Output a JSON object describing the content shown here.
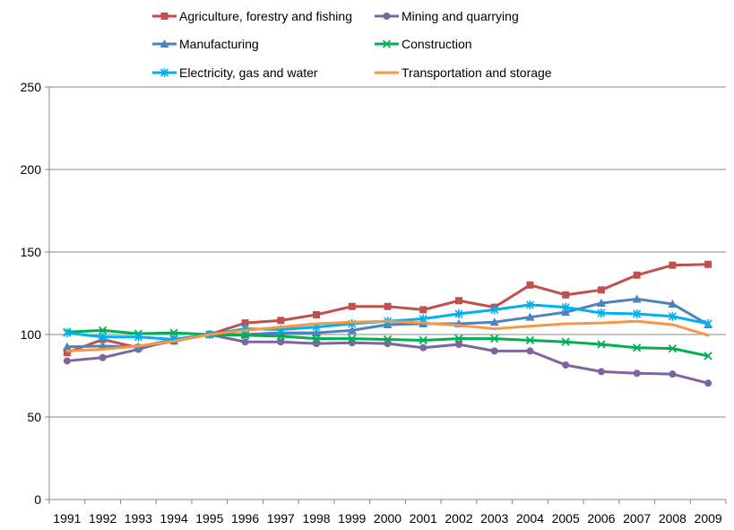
{
  "chart_data": {
    "type": "line",
    "title": "",
    "xlabel": "",
    "ylabel": "",
    "categories": [
      "1991",
      "1992",
      "1993",
      "1994",
      "1995",
      "1996",
      "1997",
      "1998",
      "1999",
      "2000",
      "2001",
      "2002",
      "2003",
      "2004",
      "2005",
      "2006",
      "2007",
      "2008",
      "2009"
    ],
    "ylim": [
      0,
      250
    ],
    "yticks": [
      0,
      50,
      100,
      150,
      200,
      250
    ],
    "grid": "horizontal",
    "legend_position": "top",
    "series": [
      {
        "name": "Agriculture, forestry and fishing",
        "color": "#c0504d",
        "marker": "square",
        "values": [
          89,
          97,
          92,
          96,
          100,
          107,
          108.5,
          112,
          117,
          117,
          115,
          120.5,
          116.5,
          130,
          124,
          127,
          136,
          142,
          142.5
        ]
      },
      {
        "name": "Mining and quarrying",
        "color": "#8064a2",
        "marker": "circle",
        "values": [
          84,
          86,
          91,
          97,
          100,
          95.5,
          95.5,
          94.5,
          95,
          94.5,
          92,
          94,
          90,
          90,
          81.5,
          77.5,
          76.5,
          76,
          70.5
        ]
      },
      {
        "name": "Manufacturing",
        "color": "#4f81bd",
        "marker": "triangle",
        "values": [
          92.5,
          93,
          92.5,
          97,
          100,
          100,
          101,
          101,
          102.5,
          106,
          106.5,
          106.5,
          107.5,
          110.5,
          113.5,
          119,
          121.5,
          118.5,
          106
        ]
      },
      {
        "name": "Construction",
        "color": "#00b050",
        "marker": "x",
        "values": [
          101.5,
          102.5,
          100.5,
          101,
          100,
          99.5,
          99,
          97.5,
          97.5,
          97,
          96.5,
          97.5,
          97.5,
          96.5,
          95.5,
          94,
          92,
          91.5,
          87
        ]
      },
      {
        "name": "Electricity, gas and water",
        "color": "#00b0f0",
        "marker": "star",
        "values": [
          101,
          98.5,
          98.5,
          97,
          100,
          103.5,
          103,
          104.5,
          106.5,
          108,
          109.5,
          112.5,
          115,
          118,
          116.5,
          113,
          112.5,
          111,
          106.5
        ]
      },
      {
        "name": "Transportation and storage",
        "color": "#f79646",
        "marker": "none",
        "values": [
          90,
          91,
          93,
          96,
          100,
          102.5,
          104.5,
          106.5,
          107.5,
          108,
          107,
          105.5,
          103.5,
          105,
          106.5,
          107,
          108,
          106,
          99.5
        ]
      }
    ]
  }
}
